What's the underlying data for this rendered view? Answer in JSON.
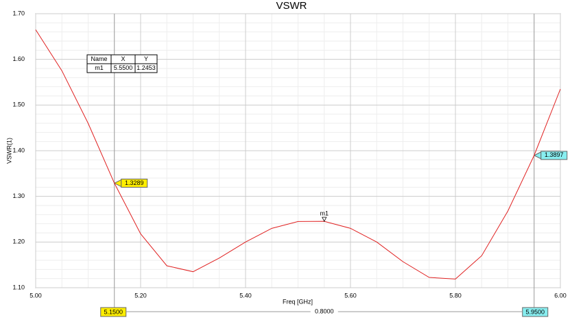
{
  "chart_data": {
    "type": "line",
    "title": "VSWR",
    "x_label": "Freq [GHz]",
    "y_label": "VSWR(1)",
    "x": [
      5.0,
      5.05,
      5.1,
      5.15,
      5.2,
      5.25,
      5.3,
      5.35,
      5.4,
      5.45,
      5.5,
      5.55,
      5.6,
      5.65,
      5.7,
      5.75,
      5.8,
      5.85,
      5.9,
      5.95,
      6.0
    ],
    "series": [
      {
        "color": "#e02020",
        "values": [
          1.665,
          1.575,
          1.46,
          1.3289,
          1.218,
          1.148,
          1.135,
          1.165,
          1.2,
          1.23,
          1.245,
          1.2453,
          1.23,
          1.2,
          1.157,
          1.1225,
          1.119,
          1.17,
          1.268,
          1.3897,
          1.535
        ]
      }
    ],
    "xlim": [
      5.0,
      6.0
    ],
    "ylim": [
      1.1,
      1.7
    ],
    "xticks": [
      {
        "value": 5.0,
        "label": "5.00"
      },
      {
        "value": 5.2,
        "label": "5.20"
      },
      {
        "value": 5.4,
        "label": "5.40"
      },
      {
        "value": 5.6,
        "label": "5.60"
      },
      {
        "value": 5.8,
        "label": "5.80"
      },
      {
        "value": 6.0,
        "label": "6.00"
      }
    ],
    "yticks": [
      {
        "value": 1.1,
        "label": "1.10"
      },
      {
        "value": 1.2,
        "label": "1.20"
      },
      {
        "value": 1.3,
        "label": "1.30"
      },
      {
        "value": 1.4,
        "label": "1.40"
      },
      {
        "value": 1.5,
        "label": "1.50"
      },
      {
        "value": 1.6,
        "label": "1.60"
      },
      {
        "value": 1.7,
        "label": "1.70"
      }
    ],
    "grid": true,
    "marker_table": {
      "columns": [
        "Name",
        "X",
        "Y"
      ]
    },
    "markers": [
      {
        "name": "m1",
        "x": {
          "value": 5.55,
          "label": "5.5500"
        },
        "y": {
          "value": 1.2453,
          "label": "1.2453"
        }
      }
    ],
    "cursors": [
      {
        "x": {
          "value": 5.15,
          "label": "5.1500"
        },
        "y": {
          "value": 1.3289,
          "label": "1.3289"
        },
        "color": "#ffee00"
      },
      {
        "x": {
          "value": 5.95,
          "label": "5.9500"
        },
        "y": {
          "value": 1.3897,
          "label": "1.3897"
        },
        "color": "#88eef0"
      }
    ],
    "cursor_delta": {
      "value": 0.8,
      "label": "0.8000"
    }
  }
}
